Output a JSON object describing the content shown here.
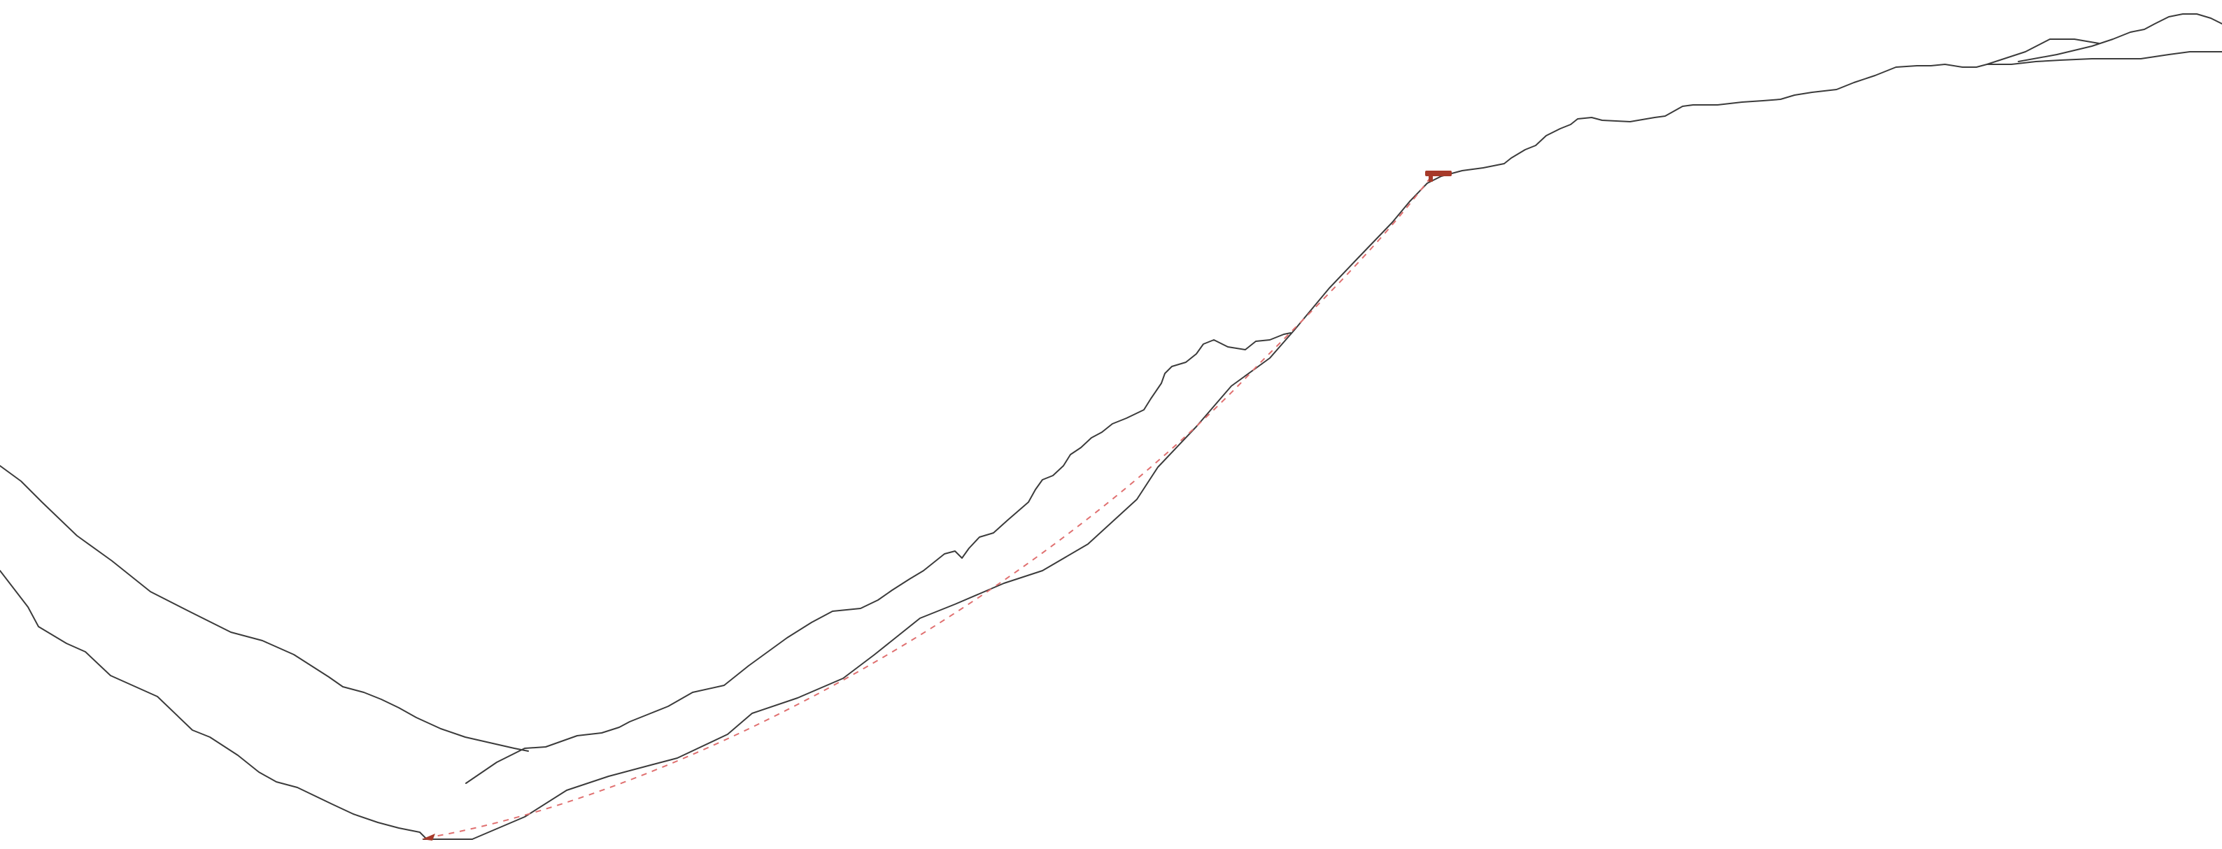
{
  "colors": {
    "background": "#ffffff",
    "terrain_line": "#3b3b3b",
    "route_dashes": "#e07070",
    "marker": "#a63a2a"
  },
  "elements": {
    "terrain": "profile-lines",
    "route": "dashed-line",
    "start_marker": "arrowhead",
    "end_marker": "flag"
  }
}
